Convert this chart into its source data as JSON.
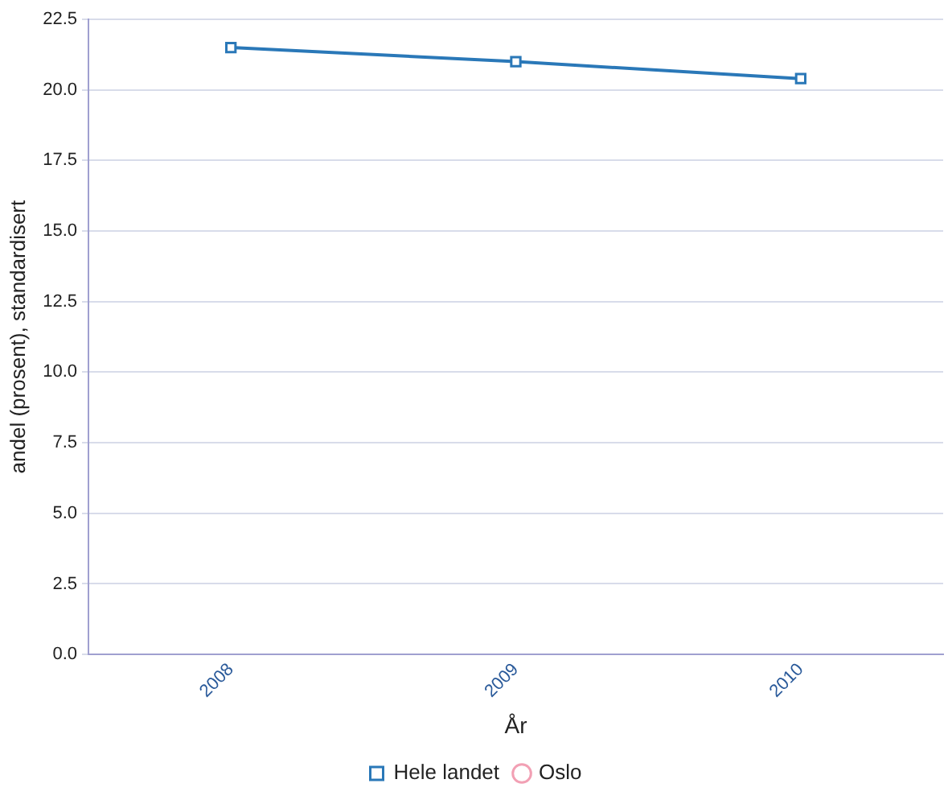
{
  "chart_data": {
    "type": "line",
    "xlabel": "År",
    "ylabel": "andel (prosent), standardisert",
    "categories": [
      "2008",
      "2009",
      "2010"
    ],
    "series": [
      {
        "name": "Hele landet",
        "color": "#2a78b8",
        "values": [
          21.5,
          21.0,
          20.4
        ]
      },
      {
        "name": "Oslo",
        "color": "#f2a0b4",
        "marker": "circle",
        "values": [
          null,
          null,
          null
        ]
      }
    ],
    "ylim": [
      0,
      22.5
    ],
    "yticks": [
      {
        "value": 0,
        "label": "0.0"
      },
      2.5,
      {
        "value": 5,
        "label": "5.0"
      },
      7.5,
      {
        "value": 10,
        "label": "10.0"
      },
      12.5,
      {
        "value": 15,
        "label": "15.0"
      },
      17.5,
      {
        "value": 20,
        "label": "20.0"
      },
      22.5
    ],
    "grid": "y",
    "legend": "bottom",
    "marker": "square"
  }
}
